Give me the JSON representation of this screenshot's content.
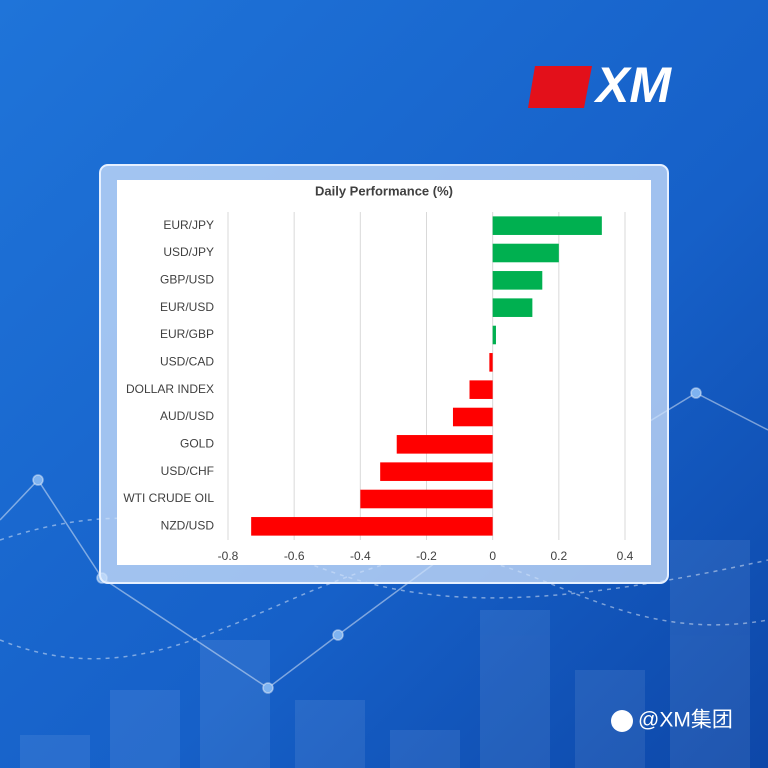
{
  "brand": "XM",
  "watermark": "@XM集团",
  "chart_data": {
    "type": "bar",
    "orientation": "horizontal",
    "title": "Daily Performance (%)",
    "categories": [
      "EUR/JPY",
      "USD/JPY",
      "GBP/USD",
      "EUR/USD",
      "EUR/GBP",
      "USD/CAD",
      "DOLLAR INDEX",
      "AUD/USD",
      "GOLD",
      "USD/CHF",
      "WTI CRUDE OIL",
      "NZD/USD"
    ],
    "values": [
      0.33,
      0.2,
      0.15,
      0.12,
      0.01,
      -0.01,
      -0.07,
      -0.12,
      -0.29,
      -0.34,
      -0.4,
      -0.73
    ],
    "positive_color": "#00b050",
    "negative_color": "#ff0000",
    "xlim": [
      -0.8,
      0.4
    ],
    "xticks": [
      -0.8,
      -0.6,
      -0.4,
      -0.2,
      0,
      0.2,
      0.4
    ],
    "grid": true
  }
}
